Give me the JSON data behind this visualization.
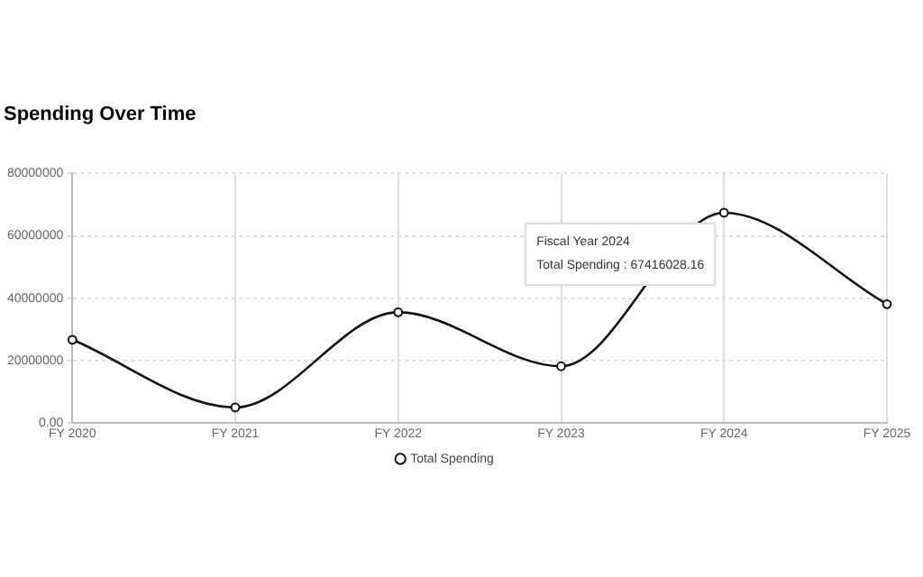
{
  "chart_data": {
    "type": "line",
    "title": "Spending Over Time",
    "categories": [
      "FY 2020",
      "FY 2021",
      "FY 2022",
      "FY 2023",
      "FY 2024",
      "FY 2025"
    ],
    "series": [
      {
        "name": "Total Spending",
        "color": "#111111",
        "values": [
          26700000,
          5000000,
          35500000,
          18200000,
          67416028.16,
          38100000
        ]
      }
    ],
    "ylim": [
      0,
      80000000
    ],
    "yticks": [
      {
        "value": 0,
        "label": "0.00"
      },
      20000000,
      40000000,
      60000000,
      80000000
    ],
    "grid": true,
    "legend": "bottom",
    "marker": "circle",
    "line_style": "solid",
    "annotations": [
      "Fiscal Year 2024",
      "Total Spending : 67416028.16"
    ]
  }
}
